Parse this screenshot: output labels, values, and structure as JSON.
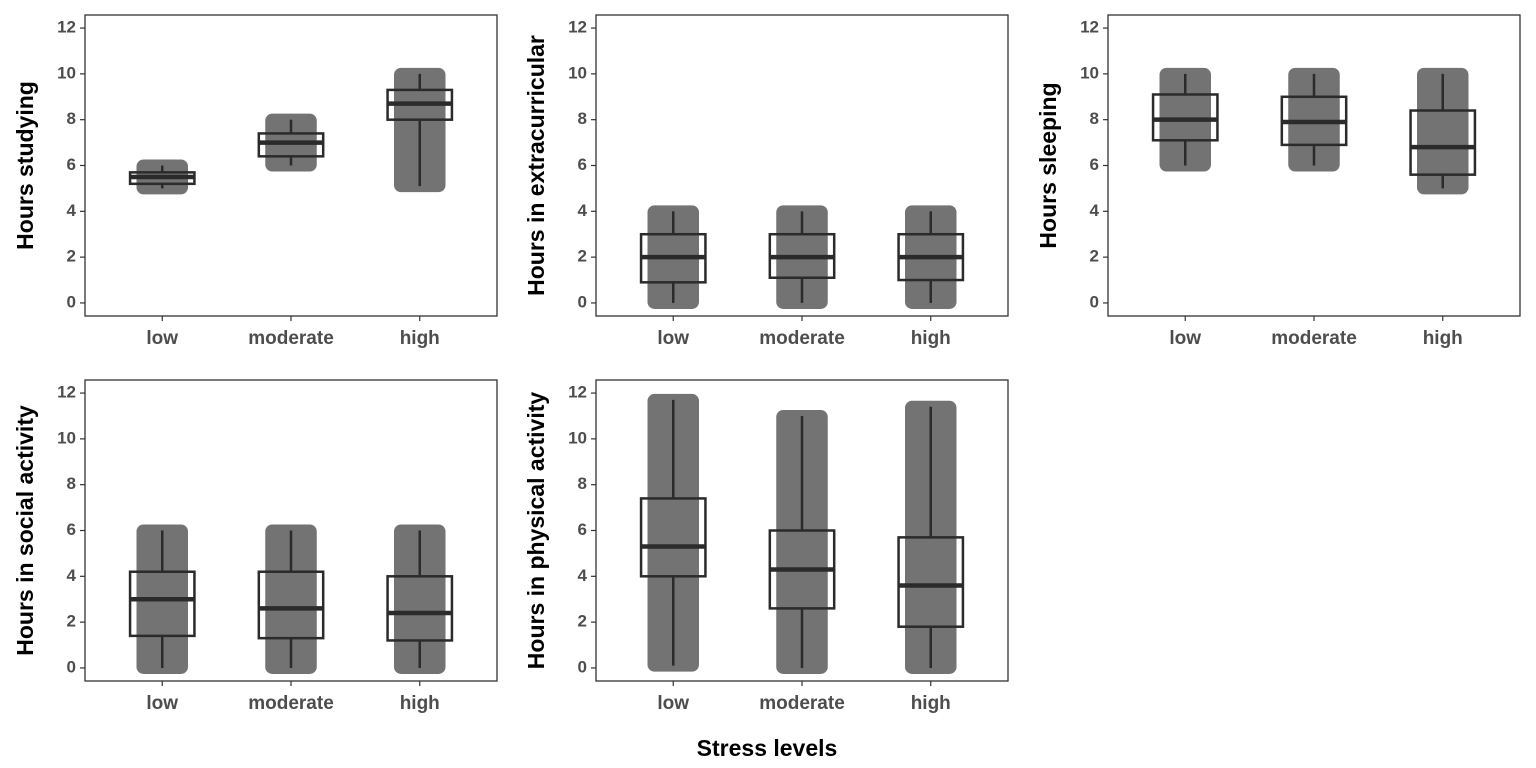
{
  "chart_data": [
    {
      "type": "box",
      "ylabel": "Hours studying",
      "categories": [
        "low",
        "moderate",
        "high"
      ],
      "color": "#2b2b2b",
      "ylim": [
        -0.57,
        12.57
      ],
      "yticks": [
        0,
        2,
        4,
        6,
        8,
        10,
        12
      ],
      "boxes": [
        {
          "min": 5,
          "q1": 5.2,
          "median": 5.5,
          "q3": 5.7,
          "max": 6
        },
        {
          "min": 6,
          "q1": 6.4,
          "median": 7,
          "q3": 7.4,
          "max": 8
        },
        {
          "min": 5.1,
          "q1": 8,
          "median": 8.7,
          "q3": 9.3,
          "max": 10
        }
      ]
    },
    {
      "type": "box",
      "ylabel": "Hours in extracurricular",
      "categories": [
        "low",
        "moderate",
        "high"
      ],
      "color": "#2b2b2b",
      "ylim": [
        -0.57,
        12.57
      ],
      "yticks": [
        0,
        2,
        4,
        6,
        8,
        10,
        12
      ],
      "boxes": [
        {
          "min": 0,
          "q1": 0.9,
          "median": 2,
          "q3": 3,
          "max": 4
        },
        {
          "min": 0,
          "q1": 1.1,
          "median": 2,
          "q3": 3,
          "max": 4
        },
        {
          "min": 0,
          "q1": 1,
          "median": 2,
          "q3": 3,
          "max": 4
        }
      ]
    },
    {
      "type": "box",
      "ylabel": "Hours sleeping",
      "categories": [
        "low",
        "moderate",
        "high"
      ],
      "color": "#2b2b2b",
      "ylim": [
        -0.57,
        12.57
      ],
      "yticks": [
        0,
        2,
        4,
        6,
        8,
        10,
        12
      ],
      "boxes": [
        {
          "min": 6,
          "q1": 7.1,
          "median": 8,
          "q3": 9.1,
          "max": 10
        },
        {
          "min": 6,
          "q1": 6.9,
          "median": 7.9,
          "q3": 9,
          "max": 10
        },
        {
          "min": 5,
          "q1": 5.6,
          "median": 6.8,
          "q3": 8.4,
          "max": 10
        }
      ]
    },
    {
      "type": "box",
      "ylabel": "Hours in social activity",
      "categories": [
        "low",
        "moderate",
        "high"
      ],
      "color": "#2b2b2b",
      "ylim": [
        -0.57,
        12.57
      ],
      "yticks": [
        0,
        2,
        4,
        6,
        8,
        10,
        12
      ],
      "boxes": [
        {
          "min": 0,
          "q1": 1.4,
          "median": 3,
          "q3": 4.2,
          "max": 6
        },
        {
          "min": 0,
          "q1": 1.3,
          "median": 2.6,
          "q3": 4.2,
          "max": 6
        },
        {
          "min": 0,
          "q1": 1.2,
          "median": 2.4,
          "q3": 4,
          "max": 6
        }
      ]
    },
    {
      "type": "box",
      "ylabel": "Hours in physical activity",
      "categories": [
        "low",
        "moderate",
        "high"
      ],
      "color": "#2b2b2b",
      "ylim": [
        -0.57,
        12.57
      ],
      "yticks": [
        0,
        2,
        4,
        6,
        8,
        10,
        12
      ],
      "boxes": [
        {
          "min": 0.1,
          "q1": 4,
          "median": 5.3,
          "q3": 7.4,
          "max": 11.7
        },
        {
          "min": 0,
          "q1": 2.6,
          "median": 4.3,
          "q3": 6,
          "max": 11
        },
        {
          "min": 0,
          "q1": 1.8,
          "median": 3.6,
          "q3": 5.7,
          "max": 11.4
        }
      ]
    }
  ],
  "xlabel": "Stress levels"
}
